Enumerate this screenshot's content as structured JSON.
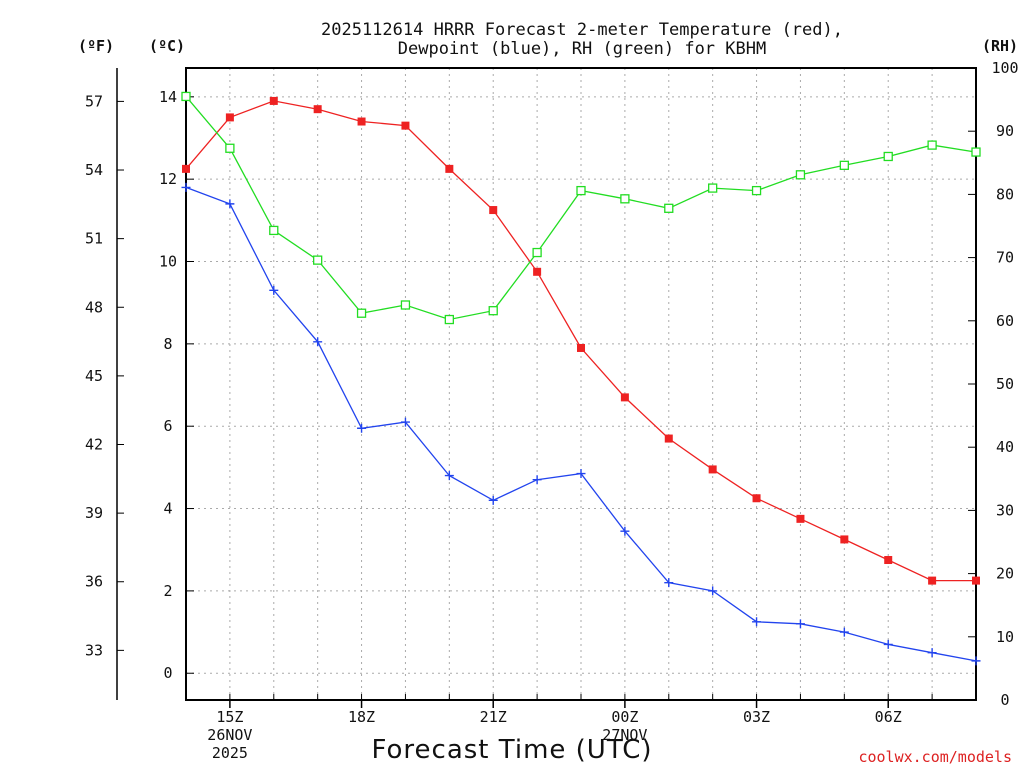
{
  "chart_data": {
    "type": "line",
    "title_lines": [
      "2025112614 HRRR Forecast 2-meter Temperature (red),",
      "Dewpoint (blue), RH (green) for KBHM"
    ],
    "xlabel": "Forecast Time (UTC)",
    "credit": "coolwx.com/models",
    "units": {
      "fahrenheit": "(ºF)",
      "celsius": "(ºC)",
      "rh": "(RH)"
    },
    "x_hours": [
      14,
      15,
      16,
      17,
      18,
      19,
      20,
      21,
      22,
      23,
      24,
      25,
      26,
      27,
      28,
      29,
      30,
      31,
      32
    ],
    "xlim": [
      14,
      32
    ],
    "x_ticks": [
      {
        "hour": 15,
        "lines": [
          "15Z",
          "26NOV",
          "2025"
        ]
      },
      {
        "hour": 18,
        "lines": [
          "18Z"
        ]
      },
      {
        "hour": 21,
        "lines": [
          "21Z"
        ]
      },
      {
        "hour": 24,
        "lines": [
          "00Z",
          "27NOV"
        ]
      },
      {
        "hour": 27,
        "lines": [
          "03Z"
        ]
      },
      {
        "hour": 30,
        "lines": [
          "06Z"
        ]
      }
    ],
    "celsius_axis": {
      "ylim": [
        -0.65,
        14.7
      ],
      "ticks": [
        0,
        2,
        4,
        6,
        8,
        10,
        12,
        14
      ]
    },
    "fahrenheit_axis": {
      "ticks": [
        33,
        36,
        39,
        42,
        45,
        48,
        51,
        54,
        57
      ]
    },
    "rh_axis": {
      "ylim": [
        0,
        100
      ],
      "ticks": [
        0,
        10,
        20,
        30,
        40,
        50,
        60,
        70,
        80,
        90,
        100
      ]
    },
    "series": [
      {
        "name": "2-meter Temperature",
        "axis": "celsius",
        "color": "#ee2222",
        "marker": "filled-square",
        "values": [
          12.25,
          13.5,
          13.9,
          13.7,
          13.4,
          13.3,
          12.25,
          11.25,
          9.75,
          7.9,
          6.7,
          5.7,
          4.95,
          4.25,
          3.75,
          3.25,
          2.75,
          2.25,
          2.25
        ]
      },
      {
        "name": "Dewpoint",
        "axis": "celsius",
        "color": "#2244ee",
        "marker": "plus",
        "values": [
          11.8,
          11.4,
          9.3,
          8.05,
          5.95,
          6.1,
          4.8,
          4.2,
          4.7,
          4.85,
          3.45,
          2.2,
          2.0,
          1.25,
          1.2,
          1.0,
          0.7,
          0.5,
          0.3
        ]
      },
      {
        "name": "RH",
        "axis": "rh",
        "color": "#22dd22",
        "marker": "open-square",
        "values": [
          95.5,
          87.3,
          74.3,
          69.6,
          61.2,
          62.5,
          60.2,
          61.6,
          70.8,
          80.6,
          79.3,
          77.8,
          81.0,
          80.6,
          83.1,
          84.6,
          86.0,
          87.8,
          86.7
        ]
      }
    ]
  }
}
